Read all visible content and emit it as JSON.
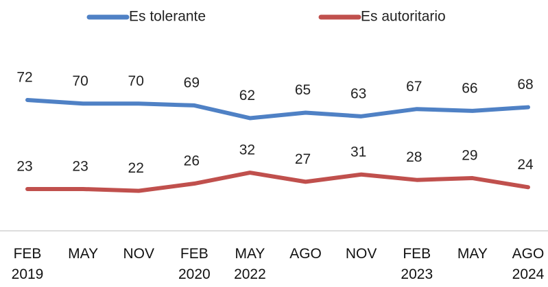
{
  "chart_data": {
    "type": "line",
    "categories": [
      "FEB 2019",
      "MAY",
      "NOV",
      "FEB 2020",
      "MAY 2022",
      "AGO",
      "NOV",
      "FEB 2023",
      "MAY",
      "AGO 2024"
    ],
    "series": [
      {
        "name": "Es tolerante",
        "color": "#4f81c5",
        "values": [
          72,
          70,
          70,
          69,
          62,
          65,
          63,
          67,
          66,
          68
        ]
      },
      {
        "name": "Es autoritario",
        "color": "#c0504d",
        "values": [
          23,
          23,
          22,
          26,
          32,
          27,
          31,
          28,
          29,
          24
        ]
      }
    ],
    "ylim": [
      0,
      127
    ],
    "legend": "top"
  }
}
